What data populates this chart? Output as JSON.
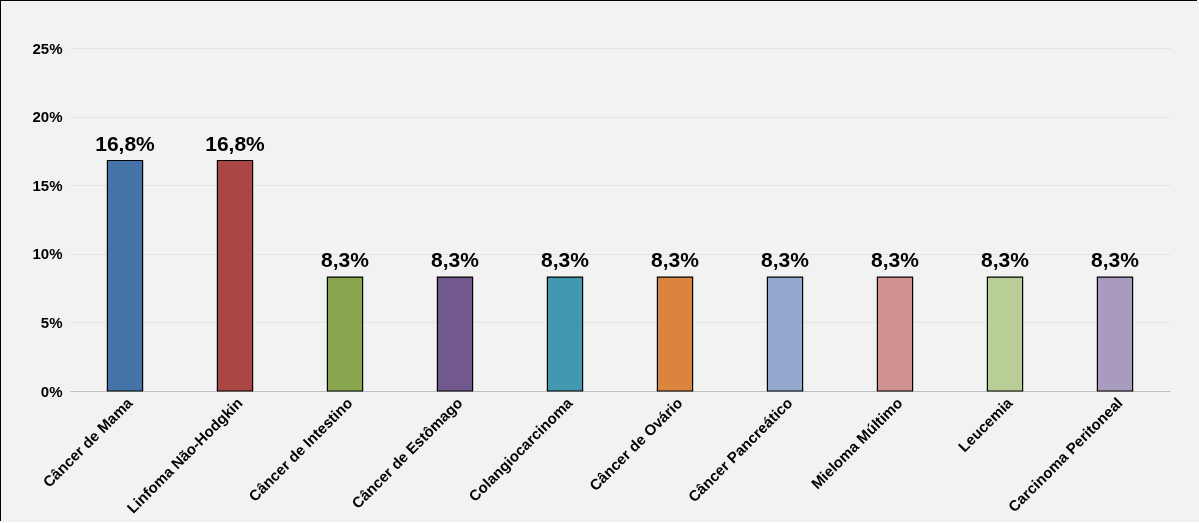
{
  "chart_data": {
    "type": "bar",
    "categories": [
      "Câncer de Mama",
      "Linfoma Não-Hodgkin",
      "Câncer de Intestino",
      "Câncer de Estômago",
      "Colangiocarcinoma",
      "Câncer de Ovário",
      "Câncer Pancreático",
      "Mieloma Múltimo",
      "Leucemia",
      "Carcinoma Peritoneal"
    ],
    "values": [
      16.8,
      16.8,
      8.3,
      8.3,
      8.3,
      8.3,
      8.3,
      8.3,
      8.3,
      8.3
    ],
    "value_labels": [
      "16,8%",
      "16,8%",
      "8,3%",
      "8,3%",
      "8,3%",
      "8,3%",
      "8,3%",
      "8,3%",
      "8,3%",
      "8,3%"
    ],
    "colors": [
      "#4572a7",
      "#aa4643",
      "#89a54e",
      "#71588f",
      "#4198af",
      "#db843d",
      "#93a9cf",
      "#d19392",
      "#b9cd96",
      "#a99bbd"
    ],
    "ylim": [
      0,
      25
    ],
    "yticks": [
      {
        "value": 0,
        "label": "0%"
      },
      {
        "value": 5,
        "label": "5%"
      },
      {
        "value": 10,
        "label": "10%"
      },
      {
        "value": 15,
        "label": "15%"
      },
      {
        "value": 20,
        "label": "20%"
      },
      {
        "value": 25,
        "label": "25%"
      }
    ],
    "grid": "y"
  }
}
